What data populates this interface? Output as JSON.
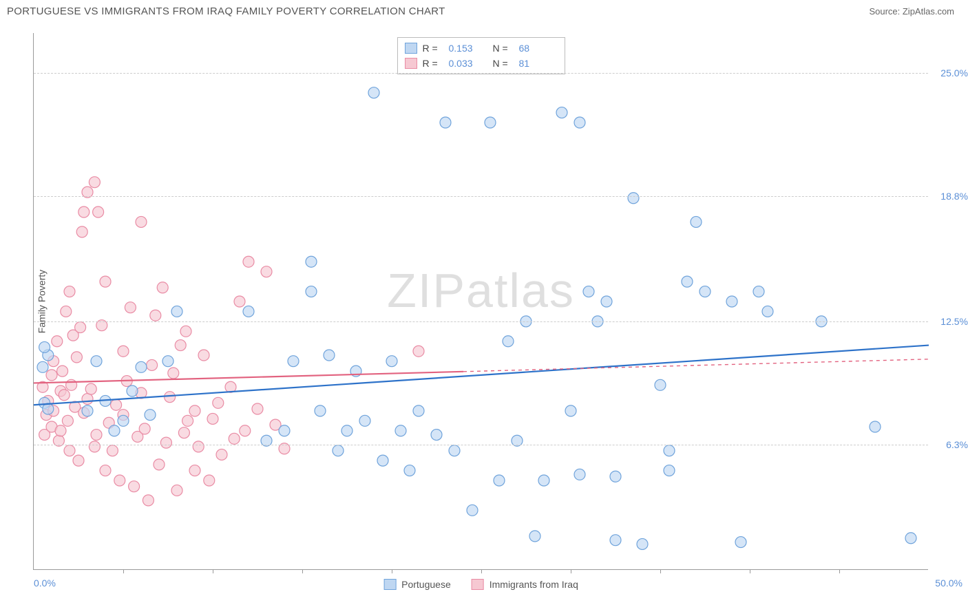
{
  "title": "PORTUGUESE VS IMMIGRANTS FROM IRAQ FAMILY POVERTY CORRELATION CHART",
  "source_label": "Source: ZipAtlas.com",
  "y_axis_title": "Family Poverty",
  "watermark": "ZIPatlas",
  "chart": {
    "type": "scatter",
    "x_min": 0.0,
    "x_max": 50.0,
    "y_min": 0.0,
    "y_max": 27.0,
    "x_min_label": "0.0%",
    "x_max_label": "50.0%",
    "y_ticks": [
      6.3,
      12.5,
      18.8,
      25.0
    ],
    "y_tick_labels": [
      "6.3%",
      "12.5%",
      "18.8%",
      "25.0%"
    ],
    "x_tick_positions": [
      5,
      10,
      15,
      20,
      25,
      30,
      35,
      40,
      45
    ],
    "background": "#ffffff",
    "grid_color": "#cccccc",
    "axis_color": "#999999",
    "marker_radius": 8,
    "marker_stroke_width": 1.2,
    "trend_line_width": 2.2
  },
  "series": [
    {
      "name": "Portuguese",
      "fill": "#bfd7f2",
      "stroke": "#6fa3db",
      "line_color": "#2d72c9",
      "R": "0.153",
      "N": "68",
      "trend": {
        "x1": 0,
        "y1": 8.3,
        "x2": 50,
        "y2": 11.3,
        "solid_to_x": 50
      },
      "points": [
        [
          0.5,
          10.2
        ],
        [
          0.6,
          8.4
        ],
        [
          0.8,
          10.8
        ],
        [
          0.8,
          8.1
        ],
        [
          0.6,
          11.2
        ],
        [
          3.0,
          8.0
        ],
        [
          3.5,
          10.5
        ],
        [
          4.0,
          8.5
        ],
        [
          5.0,
          7.5
        ],
        [
          5.5,
          9.0
        ],
        [
          6.0,
          10.2
        ],
        [
          6.5,
          7.8
        ],
        [
          7.5,
          10.5
        ],
        [
          8.0,
          13.0
        ],
        [
          14.0,
          7.0
        ],
        [
          12.0,
          13.0
        ],
        [
          13.0,
          6.5
        ],
        [
          15.5,
          15.5
        ],
        [
          14.5,
          10.5
        ],
        [
          15.5,
          14.0
        ],
        [
          16.0,
          8.0
        ],
        [
          16.5,
          10.8
        ],
        [
          17.0,
          6.0
        ],
        [
          17.5,
          7.0
        ],
        [
          18.0,
          10.0
        ],
        [
          18.5,
          7.5
        ],
        [
          19.0,
          24.0
        ],
        [
          19.5,
          5.5
        ],
        [
          20.0,
          10.5
        ],
        [
          20.5,
          7.0
        ],
        [
          21.0,
          5.0
        ],
        [
          21.5,
          8.0
        ],
        [
          22.5,
          6.8
        ],
        [
          23.5,
          6.0
        ],
        [
          23.0,
          22.5
        ],
        [
          24.5,
          3.0
        ],
        [
          25.5,
          22.5
        ],
        [
          26.0,
          4.5
        ],
        [
          26.5,
          11.5
        ],
        [
          27.0,
          6.5
        ],
        [
          27.5,
          12.5
        ],
        [
          28.0,
          1.7
        ],
        [
          28.5,
          4.5
        ],
        [
          29.5,
          23.0
        ],
        [
          30.0,
          8.0
        ],
        [
          30.5,
          4.8
        ],
        [
          30.5,
          22.5
        ],
        [
          31.5,
          12.5
        ],
        [
          32.0,
          13.5
        ],
        [
          32.5,
          4.7
        ],
        [
          32.5,
          1.5
        ],
        [
          33.5,
          18.7
        ],
        [
          34.0,
          1.3
        ],
        [
          35.0,
          9.3
        ],
        [
          35.5,
          6.0
        ],
        [
          35.5,
          5.0
        ],
        [
          37.0,
          17.5
        ],
        [
          37.5,
          14.0
        ],
        [
          39.0,
          13.5
        ],
        [
          39.5,
          1.4
        ],
        [
          41.0,
          13.0
        ],
        [
          44.0,
          12.5
        ],
        [
          47.0,
          7.2
        ],
        [
          49.0,
          1.6
        ],
        [
          40.5,
          14.0
        ],
        [
          36.5,
          14.5
        ],
        [
          31.0,
          14.0
        ],
        [
          4.5,
          7.0
        ]
      ]
    },
    {
      "name": "Immigrants from Iraq",
      "fill": "#f6c8d2",
      "stroke": "#e98ba4",
      "line_color": "#e2627f",
      "R": "0.033",
      "N": "81",
      "trend": {
        "x1": 0,
        "y1": 9.4,
        "x2": 50,
        "y2": 10.6,
        "solid_to_x": 24
      },
      "points": [
        [
          0.5,
          9.2
        ],
        [
          0.6,
          6.8
        ],
        [
          0.7,
          7.8
        ],
        [
          0.8,
          8.5
        ],
        [
          1.0,
          9.8
        ],
        [
          1.0,
          7.2
        ],
        [
          1.1,
          10.5
        ],
        [
          1.1,
          8.0
        ],
        [
          1.3,
          11.5
        ],
        [
          1.4,
          6.5
        ],
        [
          1.5,
          7.0
        ],
        [
          1.5,
          9.0
        ],
        [
          1.6,
          10.0
        ],
        [
          1.7,
          8.8
        ],
        [
          1.8,
          13.0
        ],
        [
          1.9,
          7.5
        ],
        [
          2.0,
          14.0
        ],
        [
          2.0,
          6.0
        ],
        [
          2.1,
          9.3
        ],
        [
          2.2,
          11.8
        ],
        [
          2.3,
          8.2
        ],
        [
          2.4,
          10.7
        ],
        [
          2.5,
          5.5
        ],
        [
          2.6,
          12.2
        ],
        [
          2.8,
          7.9
        ],
        [
          2.8,
          18.0
        ],
        [
          3.0,
          19.0
        ],
        [
          3.0,
          8.6
        ],
        [
          3.2,
          9.1
        ],
        [
          3.4,
          6.2
        ],
        [
          3.4,
          19.5
        ],
        [
          3.6,
          18.0
        ],
        [
          3.8,
          12.3
        ],
        [
          4.0,
          14.5
        ],
        [
          4.0,
          5.0
        ],
        [
          4.2,
          7.4
        ],
        [
          4.4,
          6.0
        ],
        [
          4.6,
          8.3
        ],
        [
          4.8,
          4.5
        ],
        [
          5.0,
          11.0
        ],
        [
          5.0,
          7.8
        ],
        [
          5.2,
          9.5
        ],
        [
          5.4,
          13.2
        ],
        [
          5.6,
          4.2
        ],
        [
          5.8,
          6.7
        ],
        [
          6.0,
          17.5
        ],
        [
          6.0,
          8.9
        ],
        [
          6.2,
          7.1
        ],
        [
          6.4,
          3.5
        ],
        [
          6.6,
          10.3
        ],
        [
          6.8,
          12.8
        ],
        [
          7.0,
          5.3
        ],
        [
          7.2,
          14.2
        ],
        [
          7.4,
          6.4
        ],
        [
          7.6,
          8.7
        ],
        [
          7.8,
          9.9
        ],
        [
          8.0,
          4.0
        ],
        [
          8.2,
          11.3
        ],
        [
          8.4,
          6.9
        ],
        [
          8.6,
          7.5
        ],
        [
          9.0,
          8.0
        ],
        [
          9.2,
          6.2
        ],
        [
          9.5,
          10.8
        ],
        [
          9.8,
          4.5
        ],
        [
          10.0,
          7.6
        ],
        [
          10.3,
          8.4
        ],
        [
          10.5,
          5.8
        ],
        [
          11.0,
          9.2
        ],
        [
          11.2,
          6.6
        ],
        [
          11.5,
          13.5
        ],
        [
          11.8,
          7.0
        ],
        [
          12.0,
          15.5
        ],
        [
          12.5,
          8.1
        ],
        [
          13.0,
          15.0
        ],
        [
          13.5,
          7.3
        ],
        [
          14.0,
          6.1
        ],
        [
          9.0,
          5.0
        ],
        [
          8.5,
          12.0
        ],
        [
          3.5,
          6.8
        ],
        [
          21.5,
          11.0
        ],
        [
          2.7,
          17.0
        ]
      ]
    }
  ],
  "legend_bottom": [
    {
      "label": "Portuguese",
      "fill": "#bfd7f2",
      "stroke": "#6fa3db"
    },
    {
      "label": "Immigrants from Iraq",
      "fill": "#f6c8d2",
      "stroke": "#e98ba4"
    }
  ]
}
